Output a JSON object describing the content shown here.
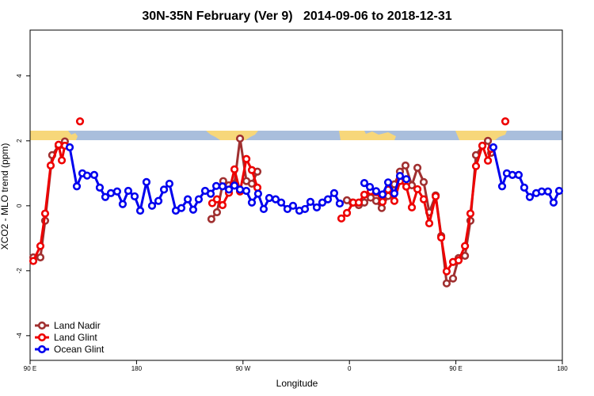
{
  "chart_data": {
    "type": "line",
    "title": "30N-35N February (Ver 9)   2014-09-06 to 2018-12-31",
    "x_label": "Longitude",
    "y_label": "XCO2 - MLO trend (ppm)",
    "xlim": [
      90,
      540
    ],
    "ylim": [
      -4.76,
      5.41
    ],
    "xticks": [
      {
        "value": 90,
        "label": "90 E"
      },
      {
        "value": 180,
        "label": "180"
      },
      {
        "value": 270,
        "label": "90 W"
      },
      {
        "value": 360,
        "label": "0"
      },
      {
        "value": 450,
        "label": "90 E"
      },
      {
        "value": 540,
        "label": "180"
      }
    ],
    "yticks": [
      -4,
      -2,
      0,
      2,
      4
    ],
    "grid": false,
    "legend": "bottomleft",
    "series": [
      {
        "name": "Land Nadir",
        "color": "#a03030",
        "x": [
          92.7,
          98.7,
          102.7,
          108.7,
          114.1,
          119.4,
          null,
          243.3,
          248.0,
          253.3,
          258.1,
          262.8,
          267.5,
          272.9,
          277.5,
          282.2,
          null,
          357.9,
          362.5,
          367.9,
          372.6,
          378.0,
          382.6,
          387.3,
          392.7,
          398.0,
          402.7,
          407.4,
          412.8,
          417.5,
          422.8,
          427.5,
          432.9,
          437.6,
          442.2,
          447.6,
          452.3,
          457.7,
          462.3,
          467.0,
          472.4,
          477.1,
          479.8
        ],
        "values": [
          -1.59,
          -1.59,
          -0.46,
          1.56,
          1.85,
          1.98,
          null,
          -0.41,
          -0.2,
          0.76,
          0.63,
          0.68,
          2.07,
          0.76,
          0.68,
          1.05,
          null,
          0.17,
          0.1,
          0.02,
          0.1,
          0.25,
          0.15,
          -0.07,
          0.3,
          0.66,
          1.05,
          1.24,
          0.63,
          1.17,
          0.73,
          -0.2,
          0.32,
          -0.93,
          -2.39,
          -2.24,
          -1.61,
          -1.54,
          -0.46,
          1.56,
          1.85,
          2.0,
          1.63
        ]
      },
      {
        "name": "Land Glint",
        "color": "#ee0000",
        "x": [
          92.7,
          98.7,
          102.7,
          107.4,
          114.1,
          116.8,
          119.4,
          null,
          132.2,
          null,
          244.0,
          248.0,
          252.7,
          258.1,
          262.8,
          267.5,
          272.9,
          277.5,
          282.2,
          null,
          353.2,
          357.9,
          363.2,
          367.9,
          372.6,
          378.0,
          382.6,
          388.0,
          392.7,
          398.0,
          402.7,
          408.1,
          412.8,
          417.5,
          422.8,
          427.5,
          432.9,
          437.6,
          442.2,
          447.6,
          452.3,
          457.7,
          462.3,
          467.0,
          472.4,
          477.1,
          479.8,
          null,
          491.8
        ],
        "values": [
          -1.7,
          -1.24,
          -0.24,
          1.24,
          1.88,
          1.4,
          1.85,
          null,
          2.6,
          null,
          0.08,
          0.2,
          0.02,
          0.4,
          1.12,
          0.44,
          1.44,
          1.1,
          0.56,
          null,
          -0.39,
          -0.22,
          0.1,
          0.1,
          0.34,
          0.45,
          0.42,
          0.12,
          0.5,
          0.15,
          0.76,
          0.59,
          -0.05,
          0.51,
          0.2,
          -0.54,
          0.29,
          -0.98,
          -2.02,
          -1.73,
          -1.68,
          -1.24,
          -0.24,
          1.22,
          1.85,
          1.39,
          1.75,
          null,
          2.6
        ]
      },
      {
        "name": "Ocean Glint",
        "color": "#0000ee",
        "x": [
          123.5,
          129.5,
          134.2,
          138.2,
          144.2,
          148.9,
          153.6,
          158.3,
          163.6,
          168.3,
          173.0,
          178.4,
          183.1,
          188.4,
          193.1,
          198.5,
          203.2,
          207.8,
          213.2,
          217.9,
          223.3,
          227.9,
          232.6,
          238.0,
          242.7,
          247.4,
          252.7,
          258.1,
          262.8,
          267.5,
          272.8,
          277.5,
          282.8,
          287.5,
          292.2,
          297.6,
          302.3,
          307.6,
          312.3,
          317.7,
          322.4,
          327.0,
          332.4,
          337.1,
          341.8,
          347.1,
          351.8,
          null,
          372.6,
          377.3,
          382.6,
          388.0,
          392.7,
          398.0,
          402.7,
          408.1,
          null,
          481.7,
          489.1,
          493.1,
          497.8,
          503.1,
          507.8,
          512.5,
          517.9,
          522.6,
          527.9,
          532.6,
          537.3
        ],
        "values": [
          1.8,
          0.6,
          1.0,
          0.93,
          0.95,
          0.56,
          0.27,
          0.39,
          0.44,
          0.05,
          0.46,
          0.29,
          -0.15,
          0.73,
          0.0,
          0.15,
          0.5,
          0.68,
          -0.15,
          -0.07,
          0.2,
          -0.12,
          0.2,
          0.46,
          0.37,
          0.61,
          0.6,
          0.5,
          0.62,
          0.5,
          0.46,
          0.1,
          0.37,
          -0.1,
          0.24,
          0.2,
          0.1,
          -0.1,
          0.0,
          -0.15,
          -0.1,
          0.12,
          -0.05,
          0.1,
          0.2,
          0.39,
          0.07,
          null,
          0.7,
          0.58,
          0.45,
          0.35,
          0.72,
          0.38,
          0.92,
          0.82,
          null,
          1.8,
          0.6,
          1.0,
          0.95,
          0.95,
          0.56,
          0.27,
          0.39,
          0.44,
          0.44,
          0.1,
          0.46
        ]
      }
    ]
  }
}
